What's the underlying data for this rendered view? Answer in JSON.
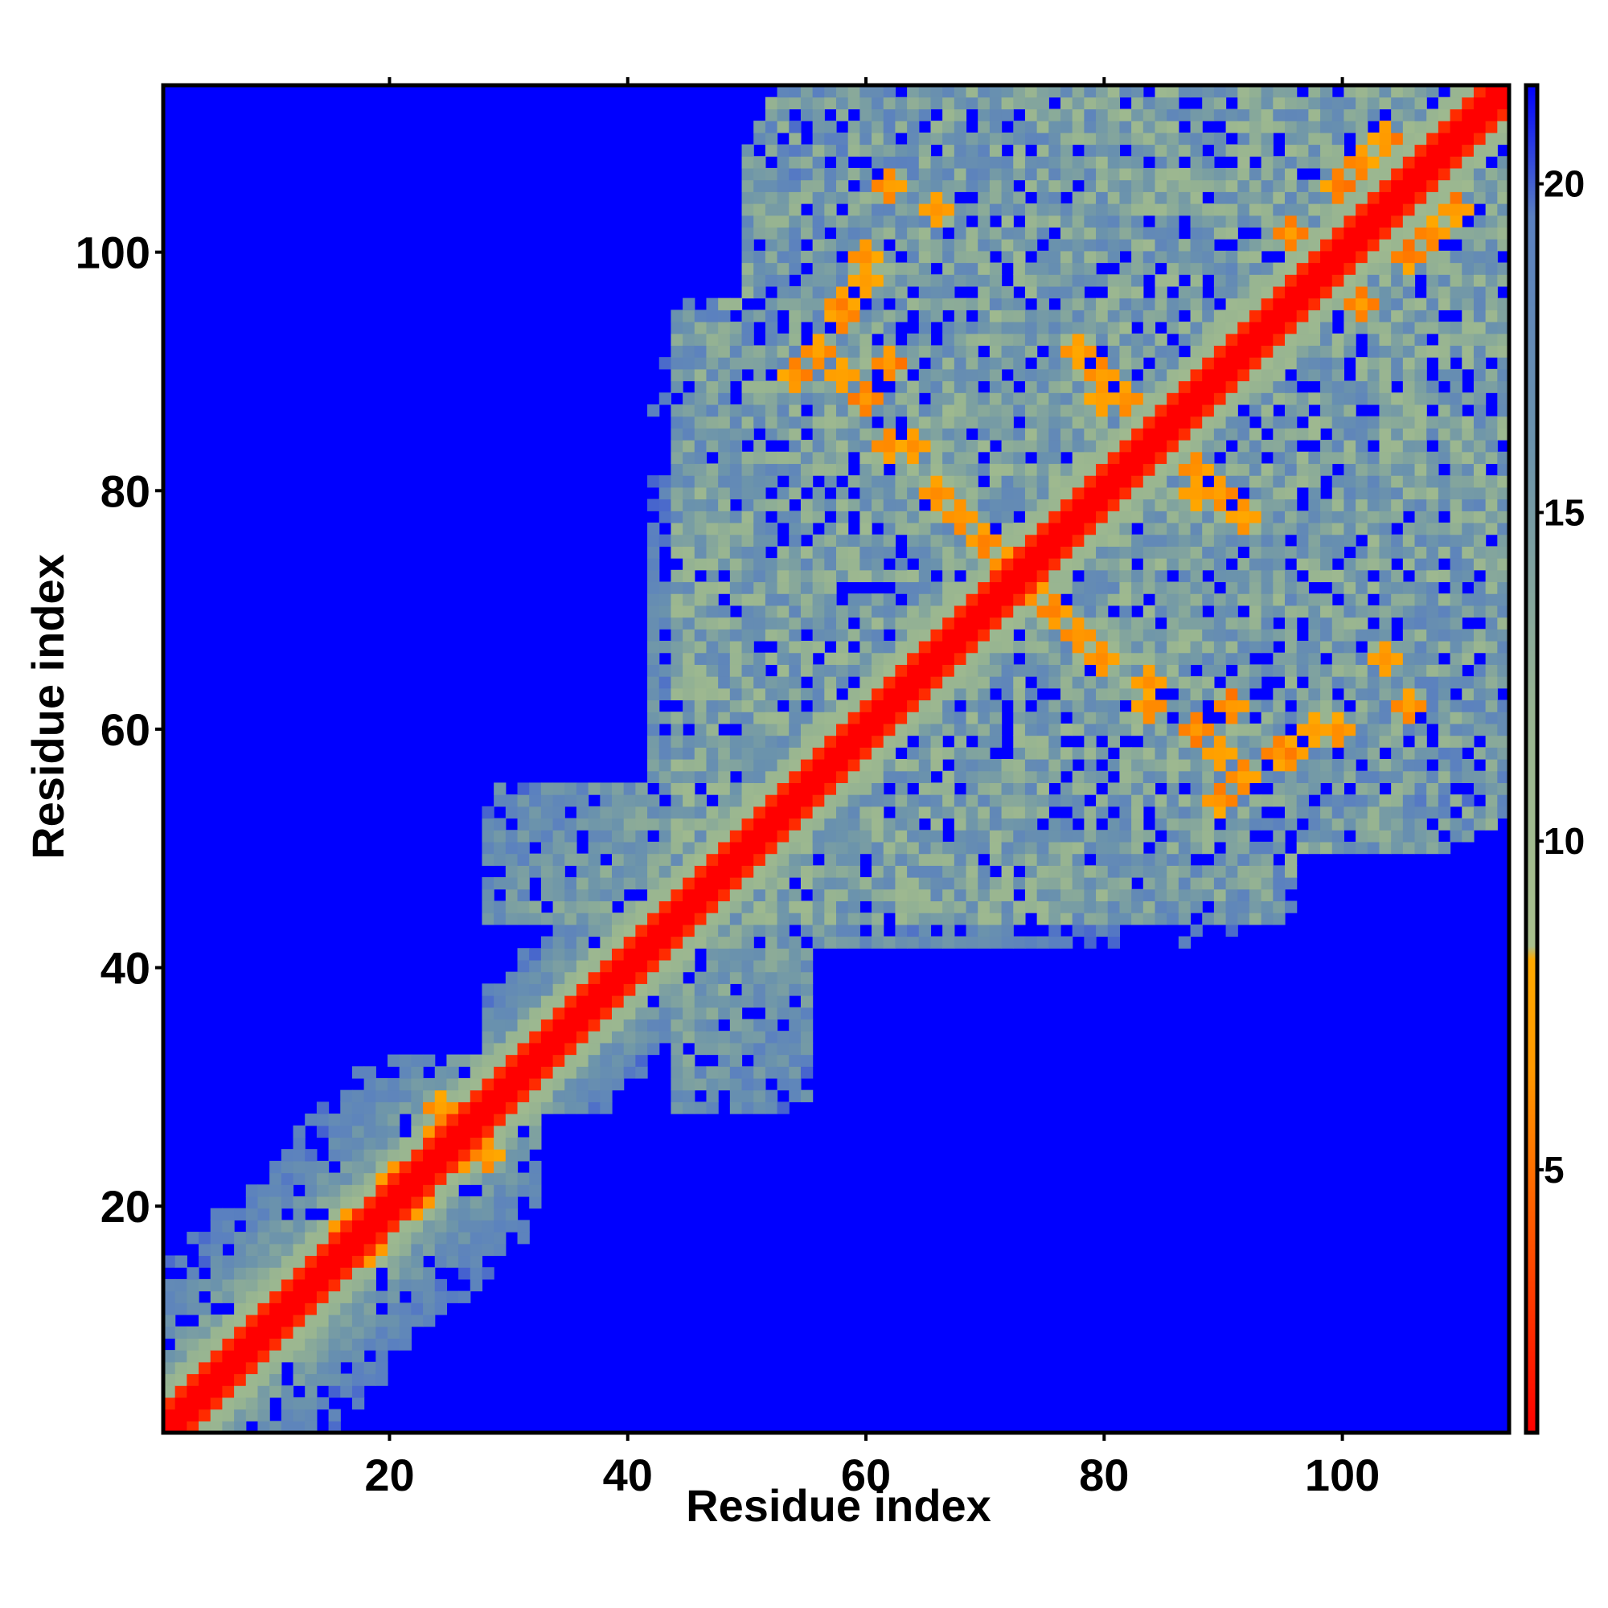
{
  "chart_data": {
    "type": "heatmap",
    "title": "",
    "xlabel": "Residue index",
    "ylabel": "Residue index",
    "n_residues": 114,
    "xlim": [
      1,
      114
    ],
    "ylim": [
      1,
      114
    ],
    "x_ticks": [
      20,
      40,
      60,
      80,
      100
    ],
    "y_ticks": [
      20,
      40,
      60,
      80,
      100
    ],
    "colorbar": {
      "range": [
        1,
        21.5
      ],
      "ticks": [
        5,
        10,
        15,
        20
      ],
      "color_stops": [
        {
          "value": 1,
          "color": "#ff0000"
        },
        {
          "value": 4,
          "color": "#ff5500"
        },
        {
          "value": 6.5,
          "color": "#ff9900"
        },
        {
          "value": 8.2,
          "color": "#ffaa00"
        },
        {
          "value": 8.4,
          "color": "#a9c08d"
        },
        {
          "value": 12,
          "color": "#97b491"
        },
        {
          "value": 16,
          "color": "#6b93ac"
        },
        {
          "value": 19.5,
          "color": "#5a80c0"
        },
        {
          "value": 21.5,
          "color": "#0000ff"
        }
      ]
    },
    "background_value": 21.5,
    "background_color": "#0000ff",
    "features": {
      "diagonal_band": {
        "min_residue": 1,
        "max_residue": 114,
        "core_value": 1
      },
      "contact_regions": [
        {
          "x_range": [
            1,
            30
          ],
          "y_range": [
            1,
            32
          ]
        },
        {
          "x_range": [
            28,
            55
          ],
          "y_range": [
            28,
            55
          ]
        },
        {
          "x_range": [
            44,
            114
          ],
          "y_range": [
            42,
            114
          ]
        }
      ],
      "low_distance_contacts": [
        [
          64,
          84
        ],
        [
          66,
          80
        ],
        [
          68,
          78
        ],
        [
          70,
          76
        ],
        [
          62,
          91
        ],
        [
          58,
          90
        ],
        [
          72,
          74
        ],
        [
          78,
          92
        ],
        [
          80,
          90
        ],
        [
          82,
          88
        ],
        [
          84,
          83
        ],
        [
          88,
          80
        ],
        [
          92,
          78
        ],
        [
          76,
          70
        ],
        [
          80,
          66
        ],
        [
          84,
          62
        ],
        [
          88,
          60
        ],
        [
          90,
          54
        ],
        [
          92,
          56
        ],
        [
          95,
          58
        ],
        [
          100,
          60
        ],
        [
          24,
          26
        ],
        [
          20,
          22
        ],
        [
          18,
          16
        ],
        [
          28,
          24
        ],
        [
          96,
          102
        ],
        [
          100,
          106
        ],
        [
          104,
          110
        ],
        [
          108,
          102
        ],
        [
          62,
          106
        ],
        [
          66,
          104
        ],
        [
          60,
          98
        ],
        [
          58,
          96
        ]
      ]
    }
  }
}
